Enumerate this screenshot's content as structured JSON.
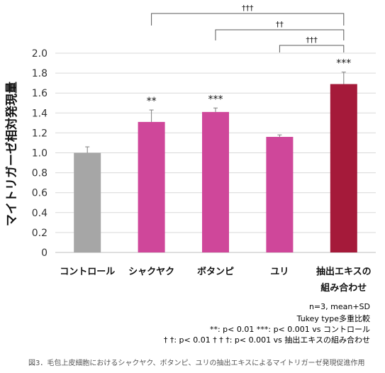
{
  "chart_data": {
    "type": "bar",
    "ylabel": "マイトリガーゼ相対発現量",
    "ylim": [
      0,
      2.0
    ],
    "ytick_step": 0.2,
    "yticks": [
      "0",
      "0.2",
      "0.4",
      "0.6",
      "0.8",
      "1.0",
      "1.2",
      "1.4",
      "1.6",
      "1.8",
      "2.0"
    ],
    "grid": true,
    "categories": [
      {
        "line1": "コントロール",
        "line2": ""
      },
      {
        "line1": "シャクヤク",
        "line2": ""
      },
      {
        "line1": "ボタンピ",
        "line2": ""
      },
      {
        "line1": "ユリ",
        "line2": ""
      },
      {
        "line1": "抽出エキスの",
        "line2": "組み合わせ"
      }
    ],
    "values": [
      1.0,
      1.31,
      1.41,
      1.16,
      1.69
    ],
    "errors": [
      0.06,
      0.12,
      0.04,
      0.02,
      0.12
    ],
    "significance": [
      "",
      "**",
      "***",
      "",
      "***"
    ],
    "colors": [
      "#a6a6a6",
      "#cf479a",
      "#cf479a",
      "#cf479a",
      "#a51a3a"
    ],
    "comparisons": [
      {
        "from": 1,
        "to": 4,
        "label": "†††"
      },
      {
        "from": 2,
        "to": 4,
        "label": "††"
      },
      {
        "from": 3,
        "to": 4,
        "label": "†††"
      }
    ]
  },
  "notes": {
    "line1": "n=3, mean+SD",
    "line2": "Tukey type多重比較",
    "line3": "**: p< 0.01  ***: p< 0.001 vs コントロール",
    "line4": "† †: p< 0.01  † † †: p< 0.001 vs 抽出エキスの組み合わせ"
  },
  "caption": "図3．毛包上皮細胞におけるシャクヤク、ボタンピ、ユリの抽出エキスによるマイトリガーゼ発現促進作用"
}
